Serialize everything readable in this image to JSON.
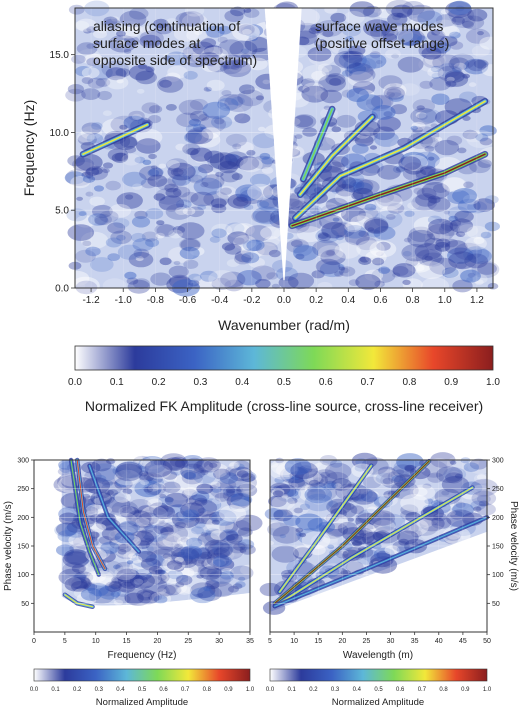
{
  "colors": {
    "colormap": [
      "#ffffff",
      "#2c3b9c",
      "#3b63c4",
      "#5db7d8",
      "#7ed957",
      "#f2e83a",
      "#e8472a",
      "#8b1e1e"
    ],
    "background_tint": "#c9d3ee"
  },
  "chart_data": [
    {
      "type": "heatmap",
      "annotations": [
        [
          "aliasing (continuation of",
          "surface modes at",
          "opposite side of spectrum)"
        ],
        [
          "surface wave modes",
          "(positive offset range)"
        ]
      ],
      "xlabel": "Wavenumber (rad/m)",
      "ylabel": "Frequency (Hz)",
      "xlim": [
        -1.3,
        1.3
      ],
      "ylim": [
        18.0,
        0.0
      ],
      "x_ticks": [
        "-1.2",
        "-1.0",
        "-0.8",
        "-0.6",
        "-0.4",
        "-0.2",
        "0.0",
        "0.2",
        "0.4",
        "0.6",
        "0.8",
        "1.0",
        "1.2"
      ],
      "x_tick_values": [
        -1.2,
        -1.0,
        -0.8,
        -0.6,
        -0.4,
        -0.2,
        0.0,
        0.2,
        0.4,
        0.6,
        0.8,
        1.0,
        1.2
      ],
      "y_ticks": [
        "0.0",
        "5.0",
        "10.0",
        "15.0"
      ],
      "y_tick_values": [
        0,
        5,
        10,
        15
      ],
      "grid": true,
      "colorbar": {
        "label": "Normalized FK Amplitude (cross-line source, cross-line receiver)",
        "ticks": [
          "0.0",
          "0.1",
          "0.2",
          "0.3",
          "0.4",
          "0.5",
          "0.6",
          "0.7",
          "0.8",
          "0.9",
          "1.0"
        ],
        "range": [
          0,
          1
        ]
      },
      "modes": [
        {
          "k": [
            0.05,
            0.6,
            1.0,
            1.25
          ],
          "f": [
            4.0,
            6.0,
            7.4,
            8.6
          ],
          "amp": 0.95
        },
        {
          "k": [
            0.07,
            0.35,
            0.75,
            1.25
          ],
          "f": [
            4.5,
            7.2,
            9.0,
            12.0
          ],
          "amp": 0.7
        },
        {
          "k": [
            0.1,
            0.3,
            0.55
          ],
          "f": [
            6.0,
            8.5,
            11.0
          ],
          "amp": 0.75
        },
        {
          "k": [
            0.12,
            0.2,
            0.3
          ],
          "f": [
            7.0,
            9.0,
            11.5
          ],
          "amp": 0.6
        },
        {
          "k": [
            -1.25,
            -0.85
          ],
          "f": [
            8.6,
            10.5
          ],
          "amp": 0.65
        }
      ]
    },
    {
      "type": "heatmap",
      "xlabel": "Frequency (Hz)",
      "ylabel": "Phase velocity (m/s)",
      "xlim": [
        0,
        35
      ],
      "ylim": [
        0,
        300
      ],
      "x_ticks": [
        "0",
        "5",
        "10",
        "15",
        "20",
        "25",
        "30",
        "35"
      ],
      "x_tick_values": [
        0,
        5,
        10,
        15,
        20,
        25,
        30,
        35
      ],
      "y_ticks": [
        "50",
        "100",
        "150",
        "200",
        "250",
        "300"
      ],
      "y_tick_values": [
        50,
        100,
        150,
        200,
        250,
        300
      ],
      "grid": true,
      "colorbar": {
        "label": "Normalized Amplitude",
        "ticks": [
          "0.0",
          "0.1",
          "0.2",
          "0.3",
          "0.4",
          "0.5",
          "0.6",
          "0.7",
          "0.8",
          "0.9",
          "1.0"
        ],
        "range": [
          0,
          1
        ]
      },
      "modes": [
        {
          "x": [
            7.0,
            8.0,
            9.5,
            11.5
          ],
          "y": [
            300,
            210,
            150,
            110
          ],
          "amp": 0.8
        },
        {
          "x": [
            6.0,
            7.5,
            9.0,
            10.5
          ],
          "y": [
            300,
            190,
            140,
            100
          ],
          "amp": 0.55
        },
        {
          "x": [
            5.0,
            7.0,
            9.5
          ],
          "y": [
            65,
            50,
            44
          ],
          "amp": 0.7
        },
        {
          "x": [
            9.0,
            12.0,
            17.0
          ],
          "y": [
            290,
            200,
            140
          ],
          "amp": 0.45
        }
      ]
    },
    {
      "type": "heatmap",
      "xlabel": "Wavelength (m)",
      "ylabel": "Phase velocity (m/s)",
      "xlim": [
        5,
        50
      ],
      "ylim": [
        0,
        300
      ],
      "x_ticks": [
        "5",
        "10",
        "15",
        "20",
        "25",
        "30",
        "35",
        "40",
        "45",
        "50"
      ],
      "x_tick_values": [
        5,
        10,
        15,
        20,
        25,
        30,
        35,
        40,
        45,
        50
      ],
      "y_ticks": [
        "50",
        "100",
        "150",
        "200",
        "250",
        "300"
      ],
      "y_tick_values": [
        50,
        100,
        150,
        200,
        250,
        300
      ],
      "grid": true,
      "colorbar": {
        "label": "Normalized Amplitude",
        "ticks": [
          "0.0",
          "0.1",
          "0.2",
          "0.3",
          "0.4",
          "0.5",
          "0.6",
          "0.7",
          "0.8",
          "0.9",
          "1.0"
        ],
        "range": [
          0,
          1
        ]
      },
      "modes": [
        {
          "x": [
            6,
            20,
            38
          ],
          "y": [
            50,
            150,
            298
          ],
          "amp": 0.95
        },
        {
          "x": [
            6,
            22,
            47
          ],
          "y": [
            45,
            130,
            252
          ],
          "amp": 0.7
        },
        {
          "x": [
            7,
            14,
            26
          ],
          "y": [
            70,
            150,
            290
          ],
          "amp": 0.65
        },
        {
          "x": [
            6,
            25,
            50
          ],
          "y": [
            45,
            110,
            200
          ],
          "amp": 0.4
        }
      ]
    }
  ]
}
